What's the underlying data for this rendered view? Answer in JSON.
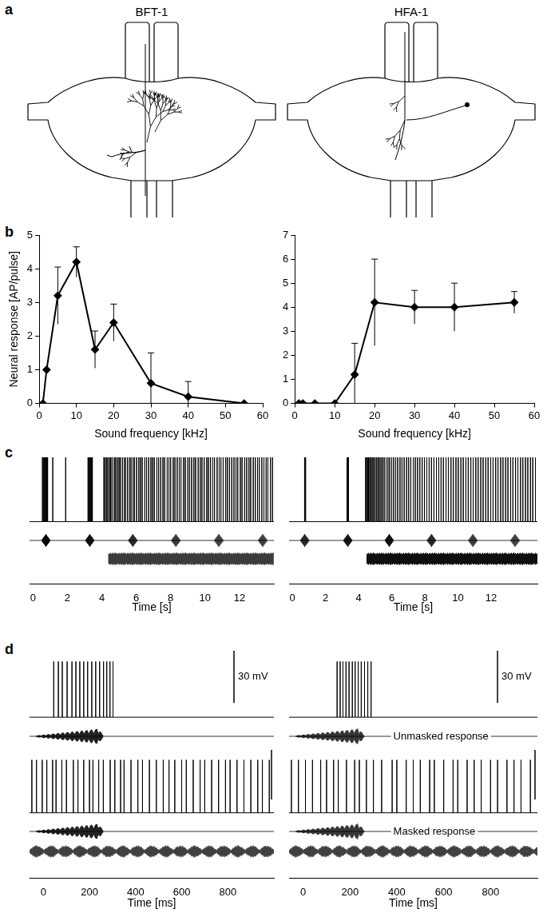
{
  "panel_labels": [
    "a",
    "b",
    "c",
    "d"
  ],
  "morphology": [
    {
      "label": "BFT-1"
    },
    {
      "label": "HFA-1"
    }
  ],
  "chart_data": [
    {
      "type": "line",
      "x_label": "Sound frequency [kHz]",
      "y_label": "Neural response [AP/pulse]",
      "x": [
        1,
        2,
        5,
        10,
        15,
        20,
        30,
        40,
        55
      ],
      "values": [
        0,
        1.0,
        3.2,
        4.2,
        1.6,
        2.4,
        0.6,
        0.2,
        0
      ],
      "errors": [
        0,
        0,
        0.85,
        0.45,
        0.55,
        0.55,
        0.9,
        0.45,
        0
      ],
      "xlim": [
        0,
        60
      ],
      "xticks": [
        0,
        10,
        20,
        30,
        40,
        50,
        60
      ],
      "ylim": [
        0,
        5
      ],
      "yticks": [
        0,
        1,
        2,
        3,
        4,
        5
      ],
      "color": "#000000",
      "marker": "diamond",
      "grid": false
    },
    {
      "type": "line",
      "x_label": "Sound frequency [kHz]",
      "x": [
        1,
        2,
        5,
        10,
        15,
        20,
        30,
        40,
        55
      ],
      "values": [
        0,
        0,
        0,
        0,
        1.2,
        4.2,
        4.0,
        4.0,
        4.2
      ],
      "errors": [
        0,
        0,
        0,
        0,
        1.3,
        1.8,
        0.7,
        1.0,
        0.45
      ],
      "xlim": [
        0,
        60
      ],
      "xticks": [
        0,
        10,
        20,
        30,
        40,
        50,
        60
      ],
      "ylim": [
        0,
        7
      ],
      "yticks": [
        0,
        1,
        2,
        3,
        4,
        5,
        6,
        7
      ],
      "color": "#000000",
      "marker": "diamond",
      "grid": false
    },
    {
      "type": "trace",
      "x_label": "Time [s]",
      "xlim": [
        -0.2,
        14
      ],
      "xticks": [
        0,
        2,
        4,
        6,
        8,
        10,
        12
      ],
      "tick_labels": "x",
      "rows": [
        {
          "kind": "voltage",
          "ylim": [
            -5,
            36
          ],
          "baseline": 0,
          "spike_peak": 32,
          "spikes": [
            0.55,
            0.6,
            0.64,
            0.68,
            0.72,
            0.76,
            0.8,
            0.85,
            1.15,
            1.9,
            3.2,
            3.24,
            3.28,
            3.32,
            3.36,
            3.4,
            3.45,
            4.12,
            4.2,
            4.28,
            4.35,
            4.45,
            4.52,
            4.6,
            4.72,
            4.8,
            4.9,
            5.0,
            5.08,
            5.2,
            5.3,
            5.38,
            5.5,
            5.62,
            5.7,
            5.82,
            5.9,
            6.02,
            6.15,
            6.25,
            6.35,
            6.5,
            6.6,
            6.72,
            6.85,
            6.95,
            7.05,
            7.2,
            7.3,
            7.42,
            7.55,
            7.65,
            7.8,
            7.9,
            8.0,
            8.15,
            8.25,
            8.38,
            8.5,
            8.6,
            8.75,
            8.85,
            9.0,
            9.1,
            9.22,
            9.35,
            9.45,
            9.6,
            9.72,
            9.82,
            9.95,
            10.1,
            10.2,
            10.32,
            10.45,
            10.55,
            10.7,
            10.82,
            10.92,
            11.05,
            11.2,
            11.3,
            11.42,
            11.55,
            11.68,
            11.8,
            11.9,
            12.05,
            12.15,
            12.3,
            12.42,
            12.55,
            12.65,
            12.8,
            12.92,
            13.05,
            13.15,
            13.3,
            13.42,
            13.55,
            13.65,
            13.8,
            13.92
          ]
        },
        {
          "kind": "pulses",
          "times": [
            0.75,
            3.3,
            5.8,
            8.3,
            10.8,
            13.35
          ]
        },
        {
          "kind": "masker",
          "start": 4.4
        }
      ]
    },
    {
      "type": "trace",
      "x_label": "Time [s]",
      "xlim": [
        -0.2,
        14.8
      ],
      "xticks": [
        0,
        2,
        4,
        6,
        8,
        10,
        12
      ],
      "tick_labels": "x",
      "rows": [
        {
          "kind": "voltage",
          "ylim": [
            -5,
            36
          ],
          "baseline": 0,
          "spike_peak": 32,
          "spikes": [
            0.72,
            0.75,
            0.78,
            0.81,
            3.3,
            3.33,
            3.36,
            3.39,
            4.42,
            4.48,
            4.54,
            4.6,
            4.67,
            4.74,
            4.82,
            4.9,
            4.98,
            5.07,
            5.16,
            5.25,
            5.35,
            5.45,
            5.55,
            5.66,
            5.77,
            5.88,
            6.0,
            6.12,
            6.24,
            6.36,
            6.5,
            6.62,
            6.75,
            6.9,
            7.02,
            7.15,
            7.3,
            7.42,
            7.56,
            7.7,
            7.84,
            7.98,
            8.12,
            8.26,
            8.4,
            8.55,
            8.7,
            8.84,
            8.98,
            9.12,
            9.28,
            9.42,
            9.58,
            9.72,
            9.88,
            10.02,
            10.18,
            10.32,
            10.48,
            10.62,
            10.78,
            10.92,
            11.08,
            11.22,
            11.38,
            11.52,
            11.68,
            11.82,
            11.98,
            12.12,
            12.28,
            12.42,
            12.58,
            12.72,
            12.88,
            13.02,
            13.18,
            13.32,
            13.48,
            13.62,
            13.78,
            13.92,
            14.08,
            14.22,
            14.38,
            14.52,
            14.68
          ]
        },
        {
          "kind": "pulses",
          "times": [
            0.75,
            3.35,
            5.85,
            8.4,
            10.9,
            13.45
          ]
        },
        {
          "kind": "masker",
          "start": 4.5
        }
      ]
    },
    {
      "type": "trace",
      "x_label": "Time [ms]",
      "xlim": [
        -60,
        1000
      ],
      "xticks": [
        0,
        200,
        400,
        600,
        800
      ],
      "tick_labels": "x",
      "rows": [
        {
          "kind": "voltage",
          "ylim": [
            -5,
            40
          ],
          "baseline": 0,
          "spike_peak": 32,
          "scale_bar": {
            "value": 30,
            "label": "30 mV"
          },
          "spikes": [
            45,
            65,
            82,
            103,
            124,
            141,
            158,
            175,
            192,
            210,
            227,
            244,
            261,
            275,
            289,
            302
          ]
        },
        {
          "kind": "pulse",
          "start": -30,
          "end": 260
        },
        {
          "kind": "voltage",
          "ylim": [
            -5,
            40
          ],
          "baseline": 0,
          "spike_peak": 32,
          "scale_bar": {
            "value": 30
          },
          "spikes": [
            -50,
            -30,
            -5,
            15,
            40,
            55,
            80,
            100,
            130,
            150,
            175,
            200,
            215,
            240,
            260,
            290,
            310,
            335,
            350,
            380,
            410,
            430,
            460,
            490,
            520,
            545,
            570,
            600,
            620,
            650,
            680,
            700,
            730,
            760,
            790,
            810,
            840,
            870,
            900,
            930,
            950,
            980
          ]
        },
        {
          "kind": "pulse",
          "start": -30,
          "end": 260
        },
        {
          "kind": "masker",
          "start": -60
        }
      ]
    },
    {
      "type": "trace",
      "x_label": "Time [ms]",
      "xlim": [
        -60,
        1000
      ],
      "xticks": [
        0,
        200,
        400,
        600,
        800
      ],
      "tick_labels": "x",
      "rows": [
        {
          "kind": "voltage",
          "ylim": [
            -5,
            40
          ],
          "baseline": 0,
          "spike_peak": 32,
          "scale_bar": {
            "value": 30,
            "label": "30 mV"
          },
          "spikes": [
            145,
            158,
            170,
            183,
            196,
            210,
            222,
            235,
            248,
            262,
            276,
            290
          ]
        },
        {
          "kind": "pulse",
          "start": -30,
          "end": 260,
          "caption": "Unmasked response"
        },
        {
          "kind": "voltage",
          "ylim": [
            -5,
            40
          ],
          "baseline": 0,
          "spike_peak": 32,
          "scale_bar": {
            "value": 30
          },
          "spikes": [
            -50,
            -20,
            10,
            40,
            75,
            100,
            130,
            150,
            185,
            220,
            240,
            270,
            300,
            335,
            380,
            400,
            440,
            470,
            500,
            540,
            560,
            600,
            640,
            660,
            700,
            730,
            760,
            800,
            830,
            870,
            900,
            930,
            970
          ]
        },
        {
          "kind": "pulse",
          "start": -30,
          "end": 260,
          "caption": "Masked response"
        },
        {
          "kind": "masker",
          "start": -60
        }
      ]
    }
  ]
}
